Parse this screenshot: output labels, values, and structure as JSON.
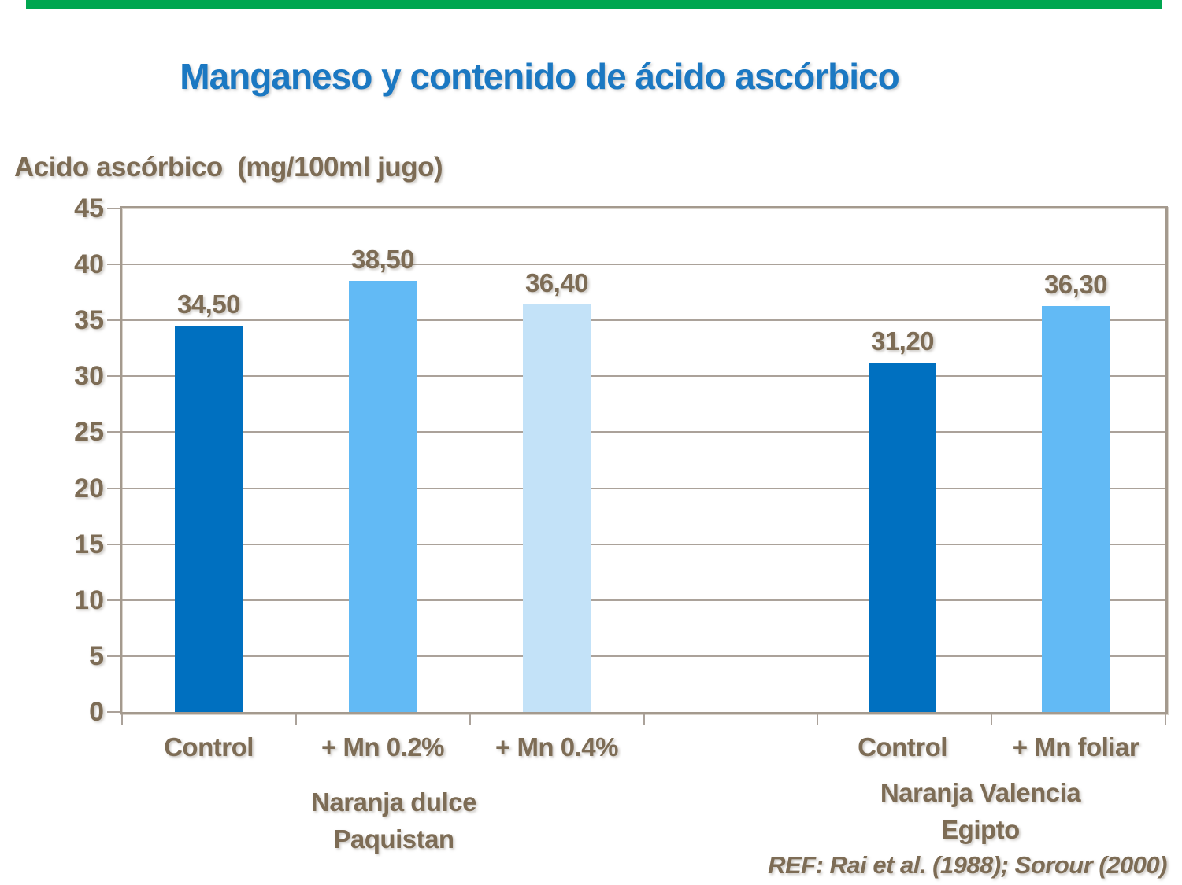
{
  "slide": {
    "reference": "REF: Rai et al. (1988); Sorour (2000)"
  },
  "colors": {
    "accent-green": "#00A650",
    "title-blue": "#1B78C2",
    "text-brown": "#7D6C55",
    "grid-line": "#ABA29A",
    "plot-border": "#A49A8E"
  },
  "chart_data": {
    "type": "bar",
    "title": "Manganeso y contenido de ácido ascórbico",
    "ylabel": "Acido ascórbico  (mg/100ml jugo)",
    "xlabel": "",
    "ylim": [
      0,
      45
    ],
    "ytick_step": 5,
    "yticks": [
      45,
      40,
      35,
      30,
      25,
      20,
      15,
      10,
      5,
      0
    ],
    "grid": true,
    "legend": "none",
    "decimal_separator": ",",
    "bars": [
      {
        "group": "Naranja dulce Paquistan",
        "category": "Control",
        "value": 34.5,
        "label": "34,50",
        "color": "#0070C0"
      },
      {
        "group": "Naranja dulce Paquistan",
        "category": "+ Mn 0.2%",
        "value": 38.5,
        "label": "38,50",
        "color": "#62BAF5"
      },
      {
        "group": "Naranja dulce Paquistan",
        "category": "+ Mn 0.4%",
        "value": 36.4,
        "label": "36,40",
        "color": "#C3E2F8"
      },
      {
        "group": "Naranja Valencia Egipto",
        "category": "Control",
        "value": 31.2,
        "label": "31,20",
        "color": "#0070C0"
      },
      {
        "group": "Naranja Valencia Egipto",
        "category": "+ Mn foliar",
        "value": 36.3,
        "label": "36,30",
        "color": "#62BAF5"
      }
    ],
    "groups": [
      {
        "lines": [
          "Naranja dulce",
          "Paquistan"
        ]
      },
      {
        "lines": [
          "Naranja Valencia",
          "Egipto"
        ]
      }
    ],
    "reference": "REF: Rai et al. (1988); Sorour (2000)"
  }
}
